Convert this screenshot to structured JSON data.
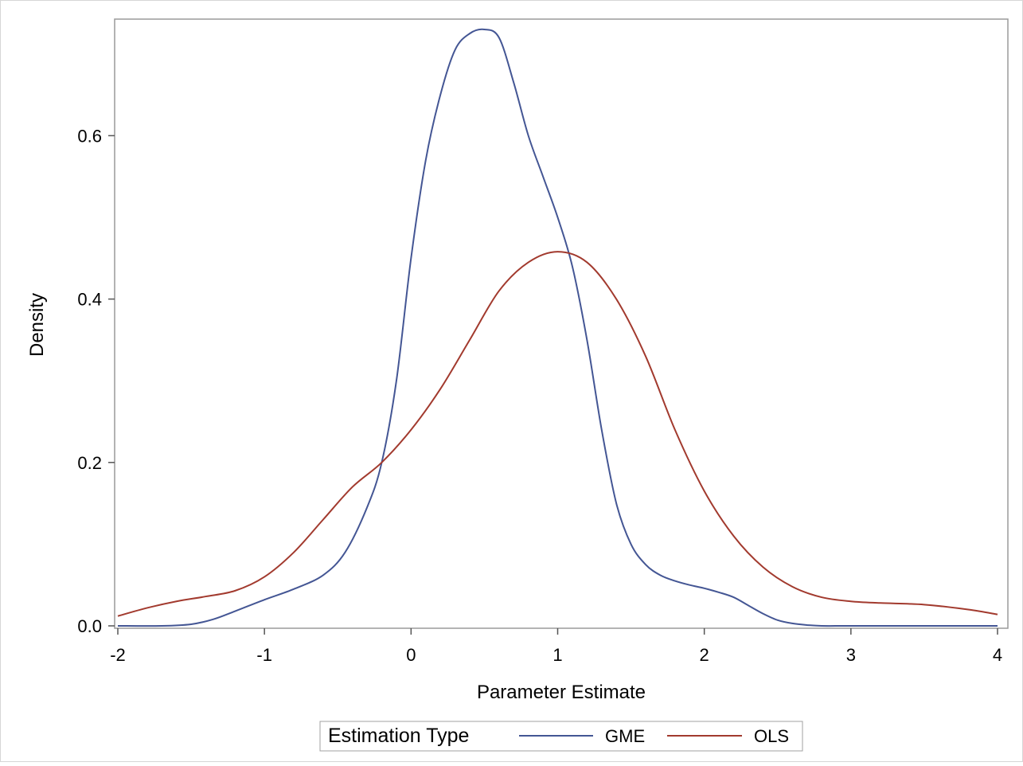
{
  "chart_data": {
    "type": "line",
    "xlabel": "Parameter Estimate",
    "ylabel": "Density",
    "xlim": [
      -2,
      4
    ],
    "ylim": [
      0,
      0.73
    ],
    "xticks": [
      "-2",
      "-1",
      "0",
      "1",
      "2",
      "3",
      "4"
    ],
    "yticks": [
      "0.0",
      "0.2",
      "0.4",
      "0.6"
    ],
    "grid": false,
    "legend": {
      "title": "Estimation Type",
      "placement": "bottom"
    },
    "series": [
      {
        "name": "GME",
        "color": "#445694",
        "x": [
          -2.0,
          -1.7,
          -1.5,
          -1.35,
          -1.2,
          -1.0,
          -0.8,
          -0.6,
          -0.45,
          -0.3,
          -0.2,
          -0.1,
          0.0,
          0.1,
          0.2,
          0.3,
          0.4,
          0.5,
          0.6,
          0.7,
          0.8,
          0.9,
          1.0,
          1.1,
          1.2,
          1.3,
          1.4,
          1.5,
          1.6,
          1.7,
          1.8,
          1.9,
          2.0,
          2.1,
          2.2,
          2.3,
          2.4,
          2.5,
          2.6,
          2.7,
          2.8,
          3.0,
          3.5,
          4.0
        ],
        "y": [
          0.0,
          0.0,
          0.002,
          0.008,
          0.018,
          0.032,
          0.045,
          0.062,
          0.09,
          0.145,
          0.2,
          0.3,
          0.45,
          0.57,
          0.65,
          0.705,
          0.725,
          0.73,
          0.72,
          0.665,
          0.6,
          0.55,
          0.5,
          0.44,
          0.35,
          0.24,
          0.15,
          0.1,
          0.075,
          0.062,
          0.055,
          0.05,
          0.046,
          0.041,
          0.035,
          0.025,
          0.015,
          0.007,
          0.003,
          0.001,
          0.0,
          0.0,
          0.0,
          0.0
        ]
      },
      {
        "name": "OLS",
        "color": "#A23A2E",
        "x": [
          -2.0,
          -1.8,
          -1.6,
          -1.4,
          -1.2,
          -1.0,
          -0.8,
          -0.6,
          -0.4,
          -0.2,
          0.0,
          0.2,
          0.4,
          0.6,
          0.8,
          1.0,
          1.2,
          1.4,
          1.6,
          1.8,
          2.0,
          2.2,
          2.4,
          2.6,
          2.8,
          3.0,
          3.2,
          3.5,
          3.8,
          4.0
        ],
        "y": [
          0.012,
          0.022,
          0.03,
          0.036,
          0.043,
          0.06,
          0.09,
          0.13,
          0.17,
          0.2,
          0.24,
          0.29,
          0.35,
          0.41,
          0.445,
          0.458,
          0.445,
          0.4,
          0.33,
          0.24,
          0.165,
          0.11,
          0.072,
          0.048,
          0.035,
          0.03,
          0.028,
          0.026,
          0.02,
          0.014
        ]
      }
    ]
  }
}
